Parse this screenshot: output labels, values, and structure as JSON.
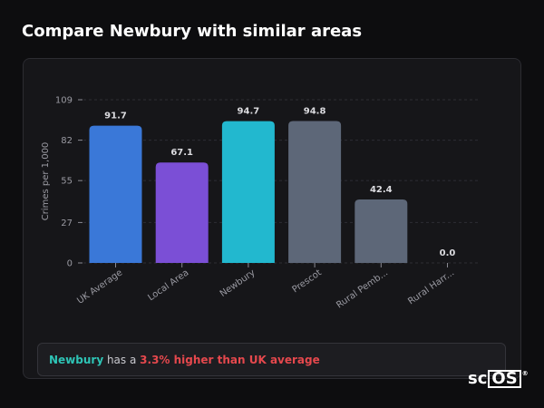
{
  "header": {
    "title": "Compare Newbury with similar areas"
  },
  "chart_data": {
    "type": "bar",
    "ylabel": "Crimes per 1,000",
    "xlabel": "",
    "ylim": [
      0,
      109
    ],
    "yticks": [
      0,
      27,
      55,
      82,
      109
    ],
    "grid": true,
    "categories": [
      "UK Average",
      "Local Area",
      "Newbury",
      "Prescot",
      "Rural Pemb...",
      "Rural Harr..."
    ],
    "values": [
      91.7,
      67.1,
      94.7,
      94.8,
      42.4,
      0.0
    ],
    "value_labels": [
      "91.7",
      "67.1",
      "94.7",
      "94.8",
      "42.4",
      "0.0"
    ],
    "colors": [
      "#3a78d8",
      "#7b4fd6",
      "#22b8cf",
      "#5d6778",
      "#5d6778",
      "#5d6778"
    ]
  },
  "summary": {
    "area_name": "Newbury",
    "middle_text": " has a ",
    "difference_text": "3.3% higher than UK average"
  },
  "logo": {
    "prefix": "sc",
    "boxed": "OS",
    "mark": "®"
  }
}
